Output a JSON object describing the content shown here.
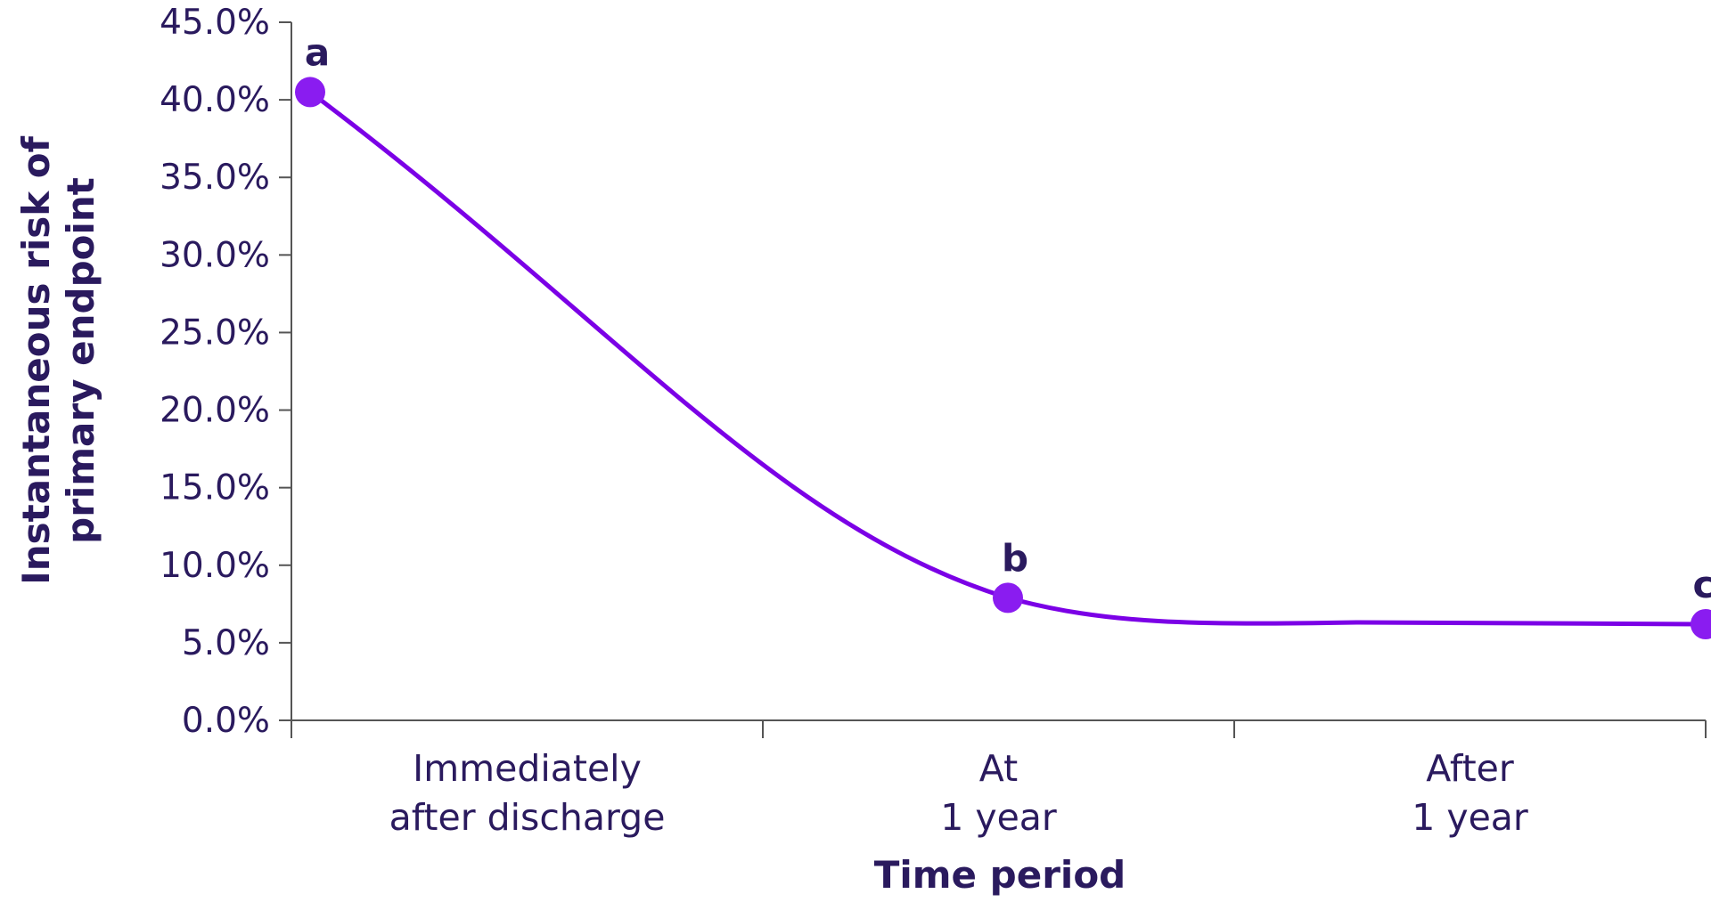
{
  "chart_data": {
    "type": "line",
    "title": "",
    "xlabel": "Time period",
    "ylabel_lines": [
      "Instantaneous risk of",
      "primary endpoint"
    ],
    "yticks": [
      "0.0%",
      "5.0%",
      "10.0%",
      "15.0%",
      "20.0%",
      "25.0%",
      "30.0%",
      "35.0%",
      "40.0%",
      "45.0%"
    ],
    "ylim": [
      0,
      45
    ],
    "categories": [
      [
        "Immediately",
        "after discharge"
      ],
      [
        "At",
        "1 year"
      ],
      [
        "After",
        "1 year"
      ]
    ],
    "x": [
      0,
      1,
      2
    ],
    "points": [
      {
        "label": "a",
        "value": 40.5
      },
      {
        "label": "b",
        "value": 7.9
      },
      {
        "label": "c",
        "value": 6.2
      }
    ],
    "grid": false,
    "colors": {
      "line": "#7b00e6",
      "marker": "#8a1cf0",
      "axis": "#555555",
      "text": "#2a1a5e"
    }
  }
}
